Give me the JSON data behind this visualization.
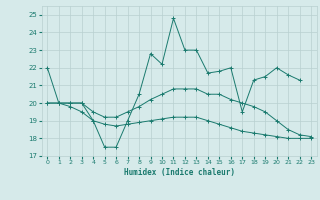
{
  "xlabel": "Humidex (Indice chaleur)",
  "ylabel": "",
  "background_color": "#d6eaea",
  "grid_color": "#b8d0d0",
  "line_color": "#1a7a6e",
  "xlim": [
    -0.5,
    23.5
  ],
  "ylim": [
    17,
    25.5
  ],
  "yticks": [
    17,
    18,
    19,
    20,
    21,
    22,
    23,
    24,
    25
  ],
  "xticks": [
    0,
    1,
    2,
    3,
    4,
    5,
    6,
    7,
    8,
    9,
    10,
    11,
    12,
    13,
    14,
    15,
    16,
    17,
    18,
    19,
    20,
    21,
    22,
    23
  ],
  "series": [
    {
      "x": [
        0,
        1,
        2,
        3,
        4,
        5,
        6,
        7,
        8,
        9,
        10,
        11,
        12,
        13,
        14,
        15,
        16,
        17,
        18,
        19,
        20,
        21,
        22,
        23
      ],
      "y": [
        22,
        20,
        20,
        20,
        19,
        17.5,
        17.5,
        19,
        20.5,
        22.8,
        22.2,
        24.8,
        23.0,
        23.0,
        21.7,
        21.8,
        22.0,
        19.5,
        21.3,
        21.5,
        22.0,
        21.6,
        21.3,
        null
      ]
    },
    {
      "x": [
        0,
        1,
        2,
        3,
        4,
        5,
        6,
        7,
        8,
        9,
        10,
        11,
        12,
        13,
        14,
        15,
        16,
        17,
        18,
        19,
        20,
        21,
        22,
        23
      ],
      "y": [
        20,
        20,
        20,
        20,
        19.5,
        19.2,
        19.2,
        19.5,
        19.8,
        20.2,
        20.5,
        20.8,
        20.8,
        20.8,
        20.5,
        20.5,
        20.2,
        20.0,
        19.8,
        19.5,
        19.0,
        18.5,
        18.2,
        18.1
      ]
    },
    {
      "x": [
        0,
        1,
        2,
        3,
        4,
        5,
        6,
        7,
        8,
        9,
        10,
        11,
        12,
        13,
        14,
        15,
        16,
        17,
        18,
        19,
        20,
        21,
        22,
        23
      ],
      "y": [
        20,
        20,
        19.8,
        19.5,
        19.0,
        18.8,
        18.7,
        18.8,
        18.9,
        19.0,
        19.1,
        19.2,
        19.2,
        19.2,
        19.0,
        18.8,
        18.6,
        18.4,
        18.3,
        18.2,
        18.1,
        18.0,
        18.0,
        18.0
      ]
    }
  ]
}
